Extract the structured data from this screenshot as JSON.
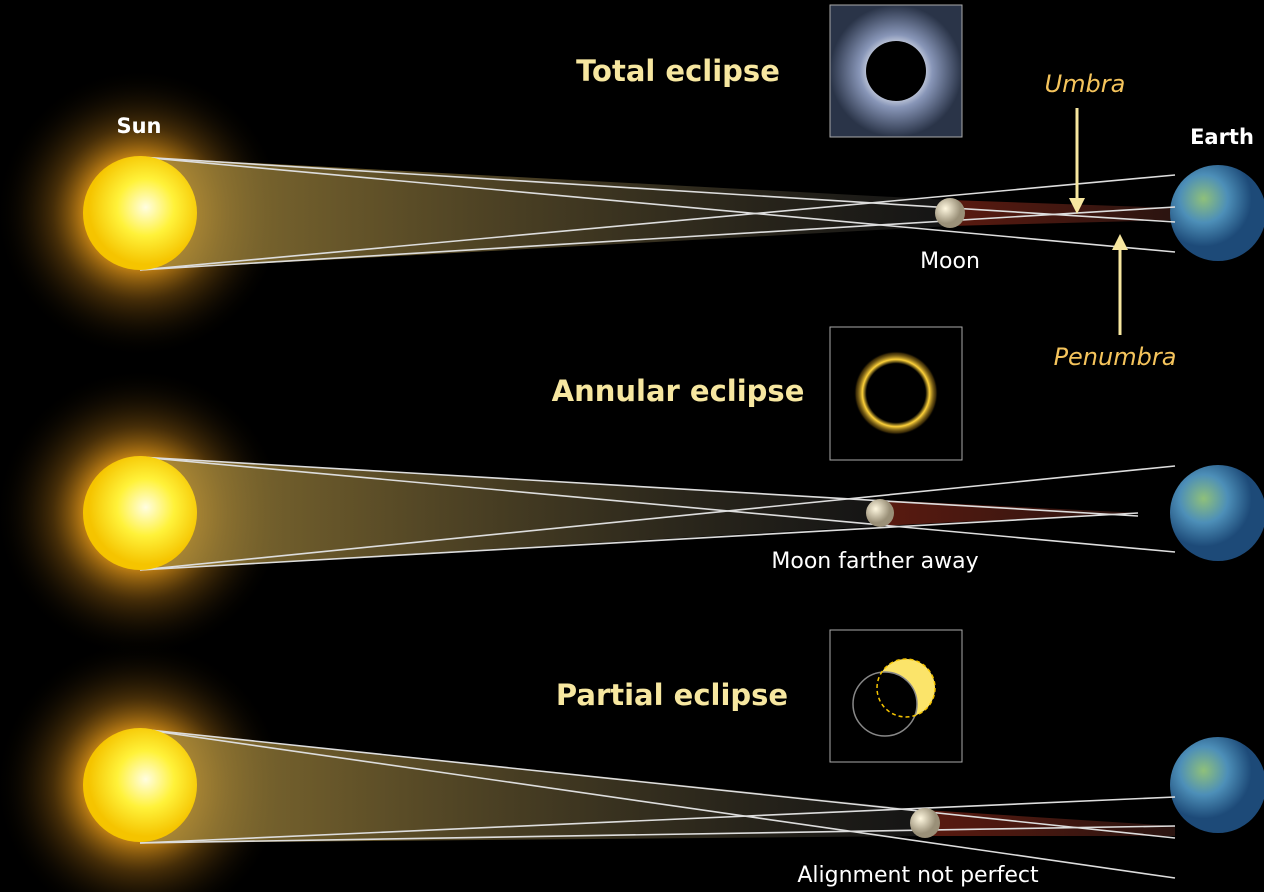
{
  "labels": {
    "sun": "Sun",
    "earth": "Earth",
    "moon": "Moon",
    "umbra": "Umbra",
    "penumbra": "Penumbra"
  },
  "panels": [
    {
      "title": "Total eclipse"
    },
    {
      "title": "Annular eclipse",
      "caption": "Moon farther away"
    },
    {
      "title": "Partial eclipse",
      "caption": "Alignment not perfect"
    }
  ]
}
